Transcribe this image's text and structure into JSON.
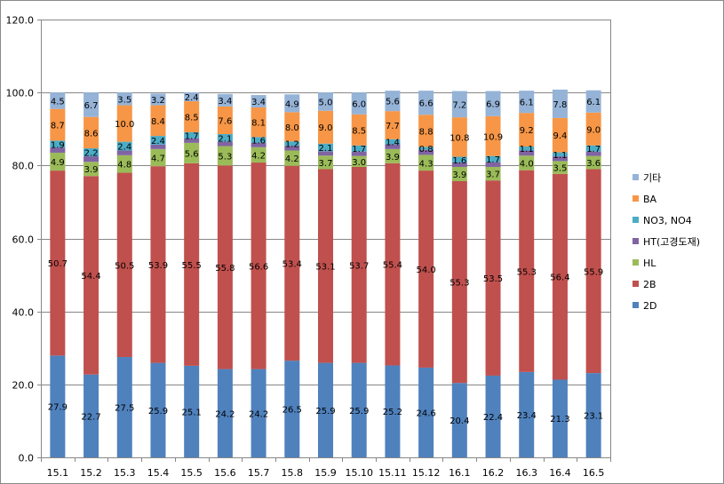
{
  "chart_data": {
    "type": "bar",
    "stacked": true,
    "categories": [
      "15.1",
      "15.2",
      "15.3",
      "15.4",
      "15.5",
      "15.6",
      "15.7",
      "15.8",
      "15.9",
      "15.10",
      "15.11",
      "15.12",
      "16.1",
      "16.2",
      "16.3",
      "16.4",
      "16.5"
    ],
    "ylim": [
      0,
      120
    ],
    "yticks": [
      "0.0",
      "20.0",
      "40.0",
      "60.0",
      "80.0",
      "100.0",
      "120.0"
    ],
    "grid": true,
    "legend_position": "right",
    "series": [
      {
        "name": "2D",
        "color": "#4F81BD",
        "values": [
          27.9,
          22.7,
          27.5,
          25.9,
          25.1,
          24.2,
          24.2,
          26.5,
          25.9,
          25.9,
          25.2,
          24.6,
          20.4,
          22.4,
          23.4,
          21.3,
          23.1
        ],
        "labels": [
          "27.9",
          "22.7",
          "27.5",
          "25.9",
          "25.1",
          "24.2",
          "24.2",
          "26.5",
          "25.9",
          "25.9",
          "25.2",
          "24.6",
          "20.4",
          "22.4",
          "23.4",
          "21.3",
          "23.1"
        ]
      },
      {
        "name": "2B",
        "color": "#C0504D",
        "values": [
          50.7,
          54.4,
          50.5,
          53.9,
          55.5,
          55.8,
          56.6,
          53.4,
          53.1,
          53.7,
          55.4,
          54.0,
          55.3,
          53.5,
          55.3,
          56.4,
          55.9
        ],
        "labels": [
          "50.7",
          "54.4",
          "50.5",
          "53.9",
          "55.5",
          "55.8",
          "56.6",
          "53.4",
          "53.1",
          "53.7",
          "55.4",
          "54.0",
          "55.3",
          "53.5",
          "55.3",
          "56.4",
          "55.9"
        ]
      },
      {
        "name": "HL",
        "color": "#9BBB59",
        "values": [
          4.9,
          3.9,
          4.8,
          4.7,
          5.6,
          5.3,
          4.2,
          4.2,
          3.7,
          3.0,
          3.9,
          4.3,
          3.9,
          3.7,
          4.0,
          3.5,
          3.6
        ],
        "labels": [
          "4.9",
          "3.9",
          "4.8",
          "4.7",
          "5.6",
          "5.3",
          "4.2",
          "4.2",
          "3.7",
          "3.0",
          "3.9",
          "4.3",
          "3.9",
          "3.7",
          "4.0",
          "3.5",
          "3.6"
        ]
      },
      {
        "name": "HT(고경도재)",
        "color": "#8064A2",
        "values": [
          1.4,
          1.5,
          1.3,
          1.2,
          1.2,
          1.2,
          1.2,
          1.3,
          1.2,
          1.2,
          1.3,
          1.4,
          1.2,
          1.3,
          1.4,
          1.3,
          1.2
        ],
        "labels": []
      },
      {
        "name": "NO3, NO4",
        "color": "#4BACC6",
        "values": [
          1.9,
          2.2,
          2.4,
          2.4,
          1.7,
          2.1,
          1.6,
          1.2,
          2.1,
          1.7,
          1.4,
          0.8,
          1.6,
          1.7,
          1.1,
          1.1,
          1.7
        ],
        "labels": [
          "1.9",
          "2.2",
          "2.4",
          "2.4",
          "1.7",
          "2.1",
          "1.6",
          "1.2",
          "2.1",
          "1.7",
          "1.4",
          "0.8",
          "1.6",
          "1.7",
          "1.1",
          "1.1",
          "1.7"
        ]
      },
      {
        "name": "BA",
        "color": "#F79646",
        "values": [
          8.7,
          8.6,
          10.0,
          8.4,
          8.5,
          7.6,
          8.1,
          8.0,
          9.0,
          8.5,
          7.7,
          8.8,
          10.8,
          10.9,
          9.2,
          9.4,
          9.0
        ],
        "labels": [
          "8.7",
          "8.6",
          "10.0",
          "8.4",
          "8.5",
          "7.6",
          "8.1",
          "8.0",
          "9.0",
          "8.5",
          "7.7",
          "8.8",
          "10.8",
          "10.9",
          "9.2",
          "9.4",
          "9.0"
        ]
      },
      {
        "name": "기타",
        "color": "#95B3D7",
        "values": [
          4.5,
          6.7,
          3.5,
          3.2,
          2.4,
          3.4,
          3.4,
          4.9,
          5.0,
          6.0,
          5.6,
          6.6,
          7.2,
          6.9,
          6.1,
          7.8,
          6.1
        ],
        "labels": [
          "4.5",
          "6.7",
          "3.5",
          "3.2",
          "2.4",
          "3.4",
          "3.4",
          "4.9",
          "5.0",
          "6.0",
          "5.6",
          "6.6",
          "7.2",
          "6.9",
          "6.1",
          "7.8",
          "6.1"
        ]
      }
    ]
  }
}
